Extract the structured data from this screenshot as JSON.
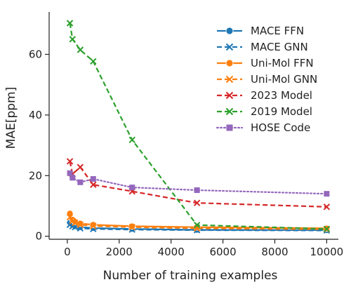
{
  "chart_data": {
    "type": "line",
    "xlabel": "Number of training examples",
    "ylabel": "MAE[ppm]",
    "xlim": [
      -700,
      10450
    ],
    "ylim": [
      -1,
      74
    ],
    "xticks": [
      0,
      2000,
      4000,
      6000,
      8000,
      10000
    ],
    "yticks": [
      0,
      20,
      40,
      60
    ],
    "grid": false,
    "legend_position": "top-right",
    "series": [
      {
        "name": "MACE FFN",
        "color": "#1f77b4",
        "dash": "solid",
        "marker": "circle",
        "x": [
          100,
          200,
          300,
          500,
          1000,
          2500,
          5000,
          10000
        ],
        "y": [
          4.5,
          3.8,
          3.4,
          3.0,
          2.7,
          2.4,
          2.1,
          2.0
        ]
      },
      {
        "name": "MACE GNN",
        "color": "#1f77b4",
        "dash": "dashed",
        "marker": "x",
        "x": [
          100,
          200,
          300,
          500,
          1000,
          2500,
          5000,
          10000
        ],
        "y": [
          3.8,
          3.3,
          3.0,
          2.6,
          2.4,
          2.2,
          2.0,
          1.9
        ]
      },
      {
        "name": "Uni-Mol FFN",
        "color": "#ff7f0e",
        "dash": "solid",
        "marker": "circle",
        "x": [
          100,
          200,
          300,
          500,
          1000,
          2500,
          5000,
          10000
        ],
        "y": [
          7.5,
          5.5,
          4.8,
          4.2,
          3.8,
          3.3,
          3.0,
          2.6
        ]
      },
      {
        "name": "Uni-Mol GNN",
        "color": "#ff7f0e",
        "dash": "dashed",
        "marker": "x",
        "x": [
          100,
          200,
          300,
          500,
          1000,
          2500,
          5000,
          10000
        ],
        "y": [
          6.3,
          5.0,
          4.4,
          3.8,
          3.4,
          3.0,
          2.6,
          2.3
        ]
      },
      {
        "name": "2023 Model",
        "color": "#d62728",
        "dash": "dashed",
        "marker": "x",
        "x": [
          100,
          200,
          500,
          1000,
          2500,
          5000,
          10000
        ],
        "y": [
          24.7,
          20.5,
          22.8,
          17.0,
          14.8,
          11.0,
          9.7
        ]
      },
      {
        "name": "2019 Model",
        "color": "#2ca02c",
        "dash": "dashed",
        "marker": "x",
        "x": [
          100,
          200,
          500,
          1000,
          2500,
          5000,
          10000
        ],
        "y": [
          70.3,
          65.0,
          61.5,
          57.7,
          31.8,
          3.7,
          2.4
        ]
      },
      {
        "name": "HOSE Code",
        "color": "#9467bd",
        "dash": "dotted",
        "marker": "square",
        "x": [
          100,
          200,
          500,
          1000,
          2500,
          5000,
          10000
        ],
        "y": [
          20.8,
          19.3,
          17.8,
          18.9,
          16.1,
          15.2,
          14.0
        ]
      }
    ]
  }
}
